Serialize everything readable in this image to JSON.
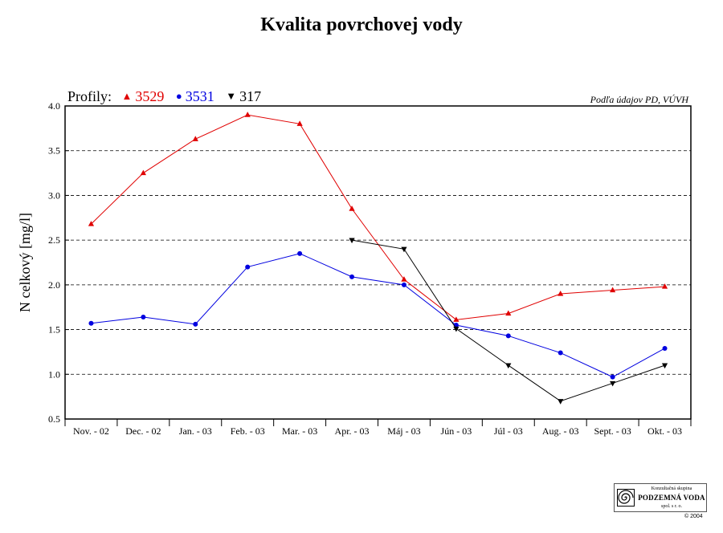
{
  "chart_data": {
    "type": "line",
    "title": "Kvalita povrchovej vody",
    "ylabel": "N celkový [mg/l]",
    "xlabel": "",
    "legend_label": "Profily:",
    "source_note": "Podľa údajov PD, VÚVH",
    "ylim": [
      0.5,
      4.0
    ],
    "yticks": [
      "0.5",
      "1.0",
      "1.5",
      "2.0",
      "2.5",
      "3.0",
      "3.5",
      "4.0"
    ],
    "grid": "horizontal dashed",
    "legend_position": "top-left",
    "categories": [
      "Nov. - 02",
      "Dec. - 02",
      "Jan. - 03",
      "Feb. - 03",
      "Mar. - 03",
      "Apr. - 03",
      "Máj - 03",
      "Jún - 03",
      "Júl - 03",
      "Aug. - 03",
      "Sept. - 03",
      "Okt. - 03"
    ],
    "series": [
      {
        "name": "3529",
        "color": "#e00000",
        "marker": "triangle-up",
        "values": [
          2.68,
          3.25,
          3.63,
          3.9,
          3.8,
          2.85,
          2.06,
          1.61,
          1.68,
          1.9,
          1.94,
          1.98
        ]
      },
      {
        "name": "3531",
        "color": "#0000e0",
        "marker": "circle",
        "values": [
          1.57,
          1.64,
          1.56,
          2.2,
          2.35,
          2.09,
          2.0,
          1.55,
          1.43,
          1.24,
          0.97,
          1.29
        ]
      },
      {
        "name": "317",
        "color": "#000000",
        "marker": "triangle-down",
        "values": [
          null,
          null,
          null,
          null,
          null,
          2.5,
          2.4,
          1.51,
          1.1,
          0.7,
          0.9,
          1.1
        ]
      }
    ]
  },
  "logo": {
    "line1": "Konzultačná skupina",
    "line2": "PODZEMNÁ VODA",
    "line3": "spol. s r. o.",
    "icon": "spiral-logo-icon"
  },
  "copyright": "© 2004"
}
